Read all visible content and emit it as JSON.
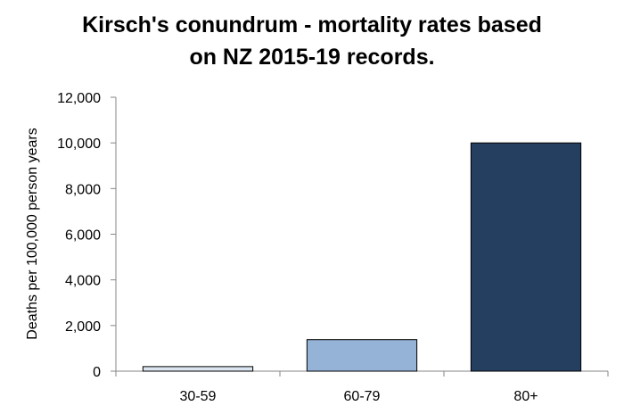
{
  "chart_data": {
    "type": "bar",
    "title_lines": [
      "Kirsch's conundrum - mortality rates based",
      "on NZ 2015-19 records."
    ],
    "xlabel": "",
    "ylabel": "Deaths per 100,000 person years",
    "categories": [
      "30-59",
      "60-79",
      "80+"
    ],
    "values": [
      200,
      1380,
      10000
    ],
    "ylim": [
      0,
      12000
    ],
    "yticks": [
      0,
      2000,
      4000,
      6000,
      8000,
      10000,
      12000
    ],
    "ytick_labels": [
      "0",
      "2,000",
      "4,000",
      "6,000",
      "8,000",
      "10,000",
      "12,000"
    ],
    "bar_colors": [
      "#dbe5f1",
      "#95b3d7",
      "#243f60"
    ],
    "grid": false,
    "legend": "none"
  }
}
